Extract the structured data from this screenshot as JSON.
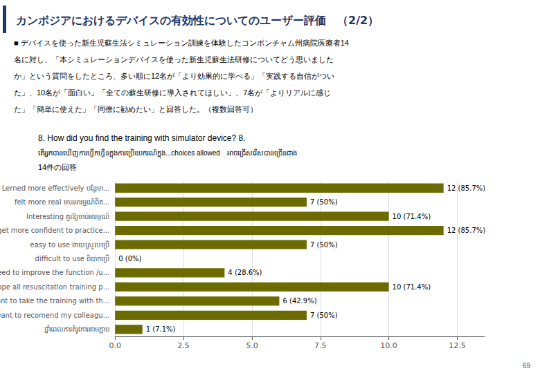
{
  "chart_data": {
    "type": "bar",
    "orientation": "horizontal",
    "title": "カンボジアにおけるデバイスの有効性についてのユーザー評価　（2/2）",
    "annotations": [
      "■ デバイスを使った新生児蘇生法シミュレーション訓練を体験したコンポンチャム州病院医療者14",
      "名に対し、「本シミュレーションデバイスを使った新生児蘇生法研修についてどう思いました",
      "か」という質問をしたところ、多い順に12名が「より効果的に学べる」「実践する自信がつい",
      "た」、10名が「面白い」「全ての蘇生研修に導入されてほしい」、7名が「よりリアルに感じ",
      "た」「簡単に使えた」「同僚に勧めたい」と回答した。（複数回答可）",
      "8. How did you find the training with simulator device? 8.",
      "តើអ្នកបានឃើញការហ្វឹកហ្វឺនក្នុងការប្រើឧបករណ៍ក្នុង...choices allowed　អាចជ្រើសរើសបានច្រើនជាង",
      "14件の回答",
      "69"
    ],
    "categories": [
      "Lerned more effectively បន្ថែមា...",
      "felt more real មានអារម្មណ៍ពិត...",
      "Interesting គួរឱ្យចាប់អារម្មណ៍",
      "get more confident to practice...",
      "easy to use ងាយស្រួលប្រើ",
      "difficult to use ពិបាកប្រើ",
      "need to improve the function /u...",
      "hope all resuscitation training p...",
      "want to take the training with th...",
      "want to recomend my colleagu...",
      "ថ្នាំពេលការតំរូវការតាមភ្ជាប"
    ],
    "values": [
      12,
      7,
      10,
      12,
      7,
      0,
      4,
      10,
      6,
      7,
      1
    ],
    "value_labels": [
      "12 (85.7%)",
      "7 (50%)",
      "10 (71.4%)",
      "12 (85.7%)",
      "7 (50%)",
      "0 (0%)",
      "4 (28.6%)",
      "10 (71.4%)",
      "6 (42.9%)",
      "7 (50%)",
      "1 (7.1%)"
    ],
    "data_labels": true,
    "color": "#6b6b00",
    "xlim": [
      0,
      13.5
    ],
    "xticks": [
      {
        "value": 0,
        "label": "0.0"
      },
      2.5,
      {
        "value": 5,
        "label": "5.0"
      },
      7.5,
      {
        "value": 10,
        "label": "10.0"
      },
      12.5
    ],
    "grid": true
  }
}
